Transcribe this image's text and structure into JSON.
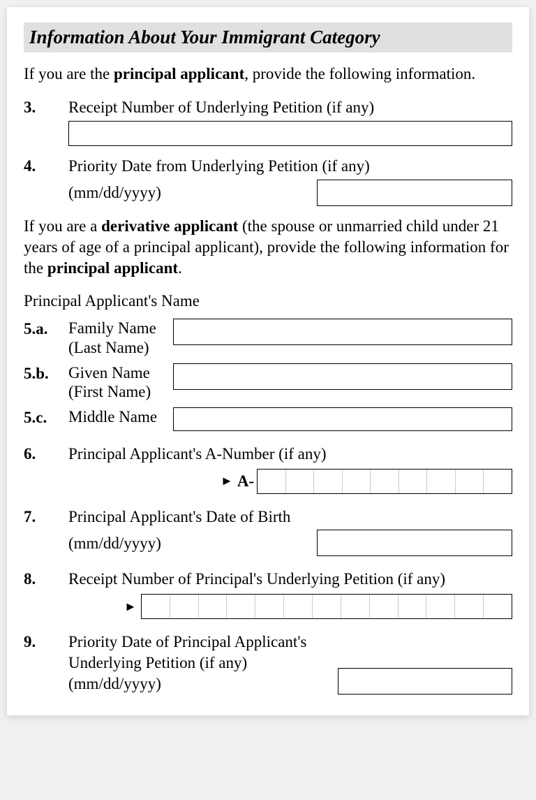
{
  "section_title": "Information About Your Immigrant Category",
  "intro_principal_pre": "If you are the ",
  "intro_principal_bold": "principal applicant",
  "intro_principal_post": ", provide the following information.",
  "q3": {
    "num": "3.",
    "label": "Receipt Number of Underlying Petition (if any)"
  },
  "q4": {
    "num": "4.",
    "label": "Priority Date from Underlying Petition (if any)",
    "format": "(mm/dd/yyyy)"
  },
  "intro_derivative_1": "If you are a ",
  "intro_derivative_bold1": "derivative applicant",
  "intro_derivative_2": " (the spouse or unmarried child under 21 years of age of a principal applicant), provide the following information for the ",
  "intro_derivative_bold2": "principal applicant",
  "intro_derivative_3": ".",
  "principal_name_heading": "Principal Applicant's Name",
  "q5a": {
    "num": "5.a.",
    "label1": "Family Name",
    "label2": "(Last Name)"
  },
  "q5b": {
    "num": "5.b.",
    "label1": "Given Name",
    "label2": "(First Name)"
  },
  "q5c": {
    "num": "5.c.",
    "label1": "Middle Name"
  },
  "q6": {
    "num": "6.",
    "label": "Principal Applicant's A-Number (if any)",
    "prefix": "A-",
    "cells": 9
  },
  "q7": {
    "num": "7.",
    "label": "Principal Applicant's Date of Birth",
    "format": "(mm/dd/yyyy)"
  },
  "q8": {
    "num": "8.",
    "label": "Receipt Number of Principal's Underlying Petition (if any)",
    "cells": 13
  },
  "q9": {
    "num": "9.",
    "label": "Priority Date of Principal Applicant's Underlying Petition (if any) (mm/dd/yyyy)"
  },
  "arrow_glyph": "►",
  "colors": {
    "header_bg": "#e0e0e0",
    "border": "#000000",
    "cell_divider": "#cccccc",
    "page_bg": "#ffffff"
  }
}
